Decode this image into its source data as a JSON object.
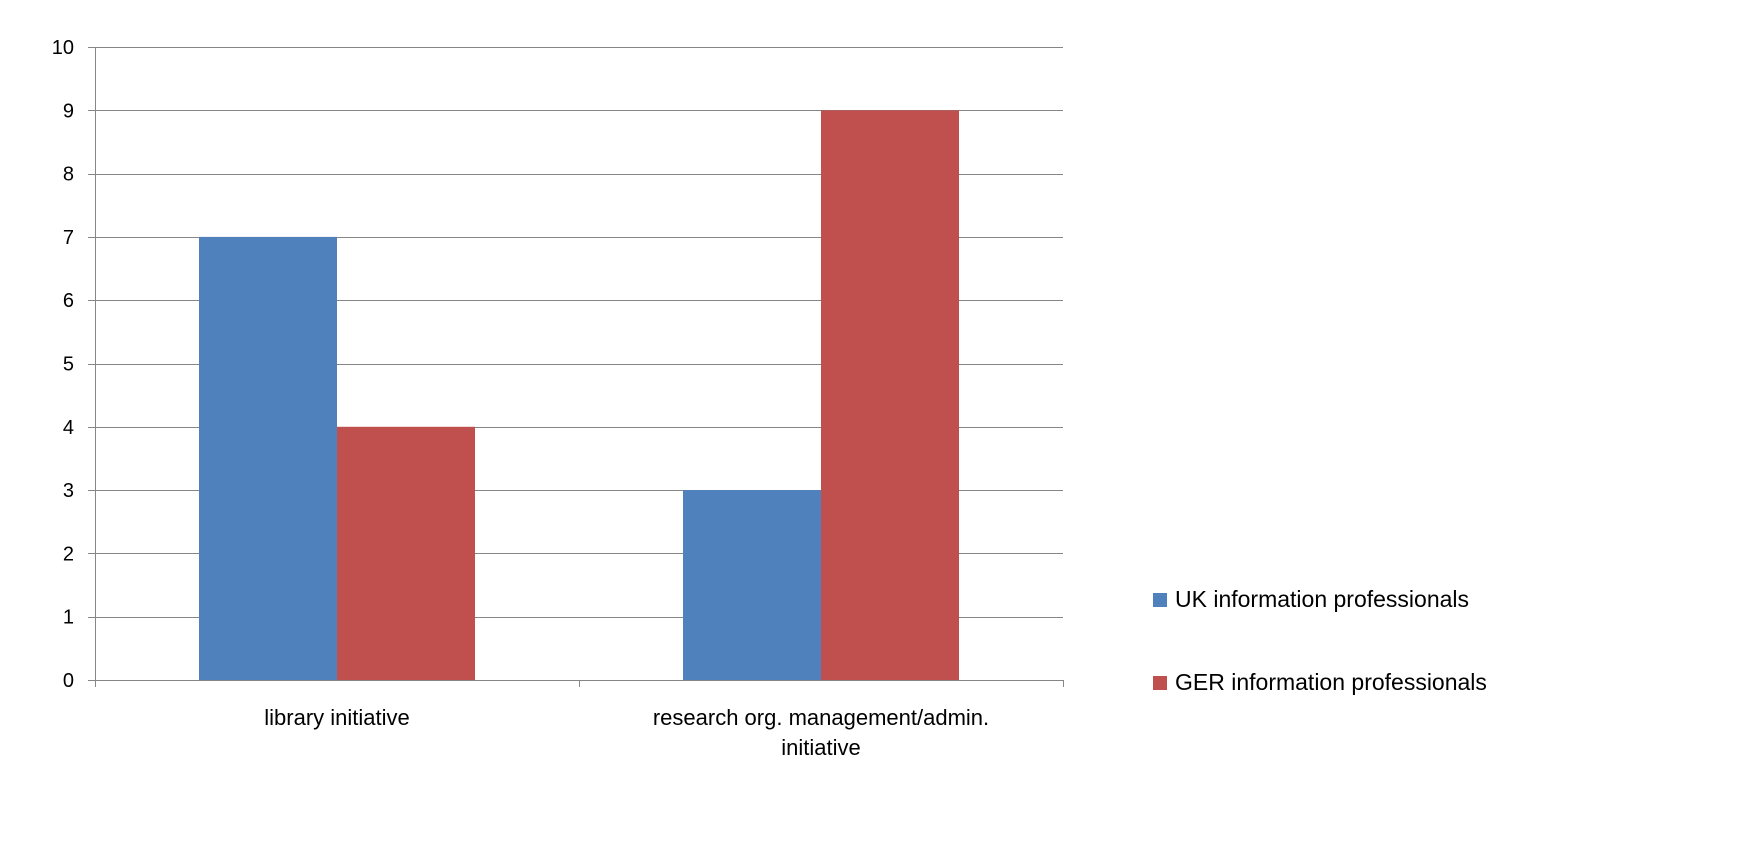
{
  "chart_data": {
    "type": "bar",
    "title": "",
    "xlabel": "",
    "ylabel": "",
    "categories": [
      [
        "library initiative"
      ],
      [
        "research org.  management/admin.",
        "initiative"
      ]
    ],
    "series": [
      {
        "name": "UK information professionals",
        "color": "#4F81BD",
        "values": [
          7,
          3
        ]
      },
      {
        "name": "GER information professionals",
        "color": "#C0504D",
        "values": [
          4,
          9
        ]
      }
    ],
    "ylim": [
      0,
      10
    ],
    "yticks": [
      0,
      1,
      2,
      3,
      4,
      5,
      6,
      7,
      8,
      9,
      10
    ],
    "grid": true,
    "gridline_color": "#868686",
    "legend_position": "right"
  }
}
